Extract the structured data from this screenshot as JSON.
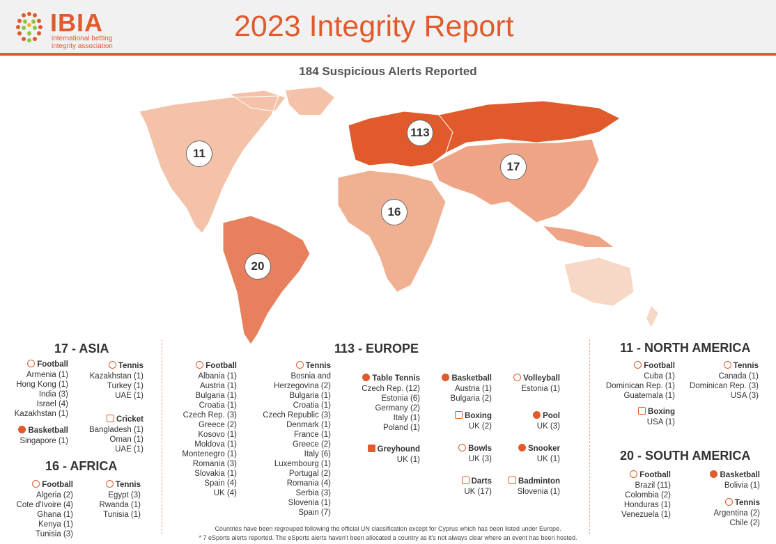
{
  "header": {
    "logo_text": "IBIA",
    "logo_sub_1": "international betting",
    "logo_sub_2": "integrity association",
    "title": "2023 Integrity Report"
  },
  "subtitle": "184 Suspicious Alerts Reported",
  "map_bubbles": {
    "north_america": "11",
    "south_america": "20",
    "europe": "113",
    "africa": "16",
    "asia": "17"
  },
  "colors": {
    "accent": "#e05a2b",
    "europe": "#e05a2b",
    "south_america": "#e8805e",
    "asia": "#efa486",
    "africa": "#f0b092",
    "north_america": "#f3c2a8",
    "oceania": "#f7d8c6"
  },
  "asia": {
    "title": "17 - ASIA",
    "football": {
      "name": "Football",
      "rows": [
        "Armenia (1)",
        "Hong Kong (1)",
        "India (3)",
        "Israel (4)",
        "Kazakhstan (1)"
      ]
    },
    "tennis": {
      "name": "Tennis",
      "rows": [
        "Kazakhstan (1)",
        "Turkey (1)",
        "UAE (1)"
      ]
    },
    "basketball": {
      "name": "Basketball",
      "rows": [
        "Singapore (1)"
      ]
    },
    "cricket": {
      "name": "Cricket",
      "rows": [
        "Bangladesh (1)",
        "Oman (1)",
        "UAE (1)"
      ]
    }
  },
  "africa": {
    "title": "16 - AFRICA",
    "football": {
      "name": "Football",
      "rows": [
        "Algeria (2)",
        "Cote d'Ivoire (4)",
        "Ghana (1)",
        "Kenya (1)",
        "Tunisia (3)"
      ]
    },
    "tennis": {
      "name": "Tennis",
      "rows": [
        "Egypt (3)",
        "Rwanda (1)",
        "Tunisia (1)"
      ]
    }
  },
  "europe": {
    "title": "113 - EUROPE",
    "football": {
      "name": "Football",
      "rows": [
        "Albania (1)",
        "Austria (1)",
        "Bulgaria (1)",
        "Croatia (1)",
        "Czech Rep. (3)",
        "Greece (2)",
        "Kosovo (1)",
        "Moldova (1)",
        "Montenegro (1)",
        "Romania (3)",
        "Slovakia (1)",
        "Spain (4)",
        "UK (4)"
      ]
    },
    "tennis": {
      "name": "Tennis",
      "rows": [
        "Bosnia and",
        "Herzegovina (2)",
        "Bulgaria (1)",
        "Croatia (1)",
        "Czech Republic (3)",
        "Denmark (1)",
        "France (1)",
        "Greece (2)",
        "Italy (6)",
        "Luxembourg (1)",
        "Portugal (2)",
        "Romania (4)",
        "Serbia (3)",
        "Slovenia (1)",
        "Spain (7)"
      ]
    },
    "table_tennis": {
      "name": "Table Tennis",
      "rows": [
        "Czech Rep. (12)",
        "Estonia (6)",
        "Germany (2)",
        "Italy (1)",
        "Poland (1)"
      ]
    },
    "basketball": {
      "name": "Basketball",
      "rows": [
        "Austria (1)",
        "Bulgaria (2)"
      ]
    },
    "volleyball": {
      "name": "Volleyball",
      "rows": [
        "Estonia (1)"
      ]
    },
    "boxing": {
      "name": "Boxing",
      "rows": [
        "UK (2)"
      ]
    },
    "pool": {
      "name": "Pool",
      "rows": [
        "UK (3)"
      ]
    },
    "greyhound": {
      "name": "Greyhound",
      "rows": [
        "UK (1)"
      ]
    },
    "bowls": {
      "name": "Bowls",
      "rows": [
        "UK (3)"
      ]
    },
    "snooker": {
      "name": "Snooker",
      "rows": [
        "UK (1)"
      ]
    },
    "darts": {
      "name": "Darts",
      "rows": [
        "UK (17)"
      ]
    },
    "badminton": {
      "name": "Badminton",
      "rows": [
        "Slovenia (1)"
      ]
    }
  },
  "north_america": {
    "title": "11 - NORTH AMERICA",
    "football": {
      "name": "Football",
      "rows": [
        "Cuba (1)",
        "Dominican Rep. (1)",
        "Guatemala (1)"
      ]
    },
    "tennis": {
      "name": "Tennis",
      "rows": [
        "Canada (1)",
        "Dominican Rep. (3)",
        "USA (3)"
      ]
    },
    "boxing": {
      "name": "Boxing",
      "rows": [
        "USA (1)"
      ]
    }
  },
  "south_america": {
    "title": "20 - SOUTH AMERICA",
    "football": {
      "name": "Football",
      "rows": [
        "Brazil (11)",
        "Colombia (2)",
        "Honduras (1)",
        "Venezuela (1)"
      ]
    },
    "basketball": {
      "name": "Basketball",
      "rows": [
        "Bolivia (1)"
      ]
    },
    "tennis": {
      "name": "Tennis",
      "rows": [
        "Argentina (2)",
        "Chile (2)"
      ]
    }
  },
  "footnotes": [
    "Countries have been regrouped following the official UN classification except for Cyprus which has been listed under Europe.",
    "* 7 eSports alerts reported. The eSports alerts haven't been allocated a country as it's not always clear where an event has been hosted."
  ]
}
